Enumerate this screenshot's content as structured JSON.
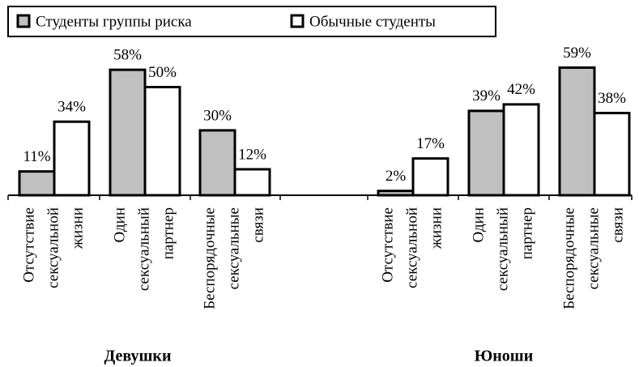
{
  "chart_data": {
    "type": "bar",
    "categories": [
      [
        "Отсутствие",
        "сексуальной",
        "жизни"
      ],
      [
        "Один",
        "сексуальный",
        "партнер"
      ],
      [
        "Беспорядочные",
        "сексуальные",
        "связи"
      ],
      [
        "Отсутствие",
        "сексуальной",
        "жизни"
      ],
      [
        "Один",
        "сексуальный",
        "партнер"
      ],
      [
        "Беспорядочные",
        "сексуальные",
        "связи"
      ]
    ],
    "group_labels": [
      "Девушки",
      "Юноши"
    ],
    "series": [
      {
        "name": "Студенты группы риска",
        "color": "#c0c0c0",
        "values": [
          11,
          58,
          30,
          2,
          39,
          59
        ],
        "value_labels": [
          "11%",
          "58%",
          "30%",
          "2%",
          "39%",
          "59%"
        ]
      },
      {
        "name": "Обычные студенты",
        "color": "#ffffff",
        "values": [
          34,
          50,
          12,
          17,
          42,
          38
        ],
        "value_labels": [
          "34%",
          "50%",
          "12%",
          "17%",
          "42%",
          "38%"
        ]
      }
    ]
  }
}
